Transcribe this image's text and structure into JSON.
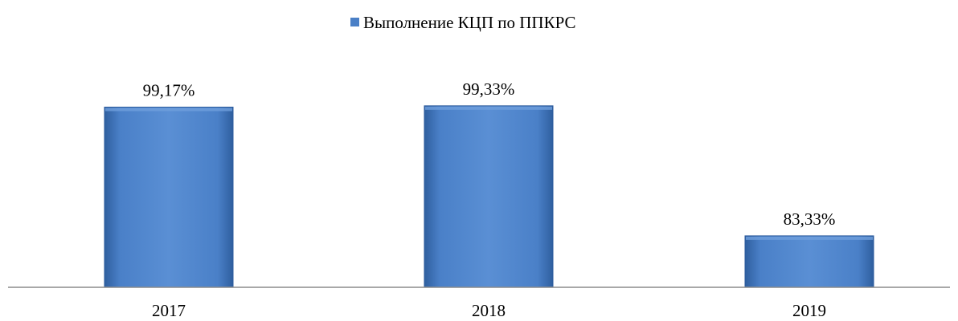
{
  "chart_data": {
    "type": "bar",
    "categories": [
      "2017",
      "2018",
      "2019"
    ],
    "series": [
      {
        "name": "Выполнение КЦП по ППКРС",
        "values": [
          99.17,
          99.33,
          83.33
        ],
        "labels": [
          "99,17%",
          "99,33%",
          "83,33%"
        ]
      }
    ],
    "ylim": [
      77,
      100.5
    ],
    "grid": false,
    "legend_position": "top-center",
    "colors": {
      "bar": "#4a7fc6",
      "bar_dark": "#2a5a9c",
      "bar_light": "#6f9fdc",
      "axis": "#8c8c8c"
    }
  }
}
